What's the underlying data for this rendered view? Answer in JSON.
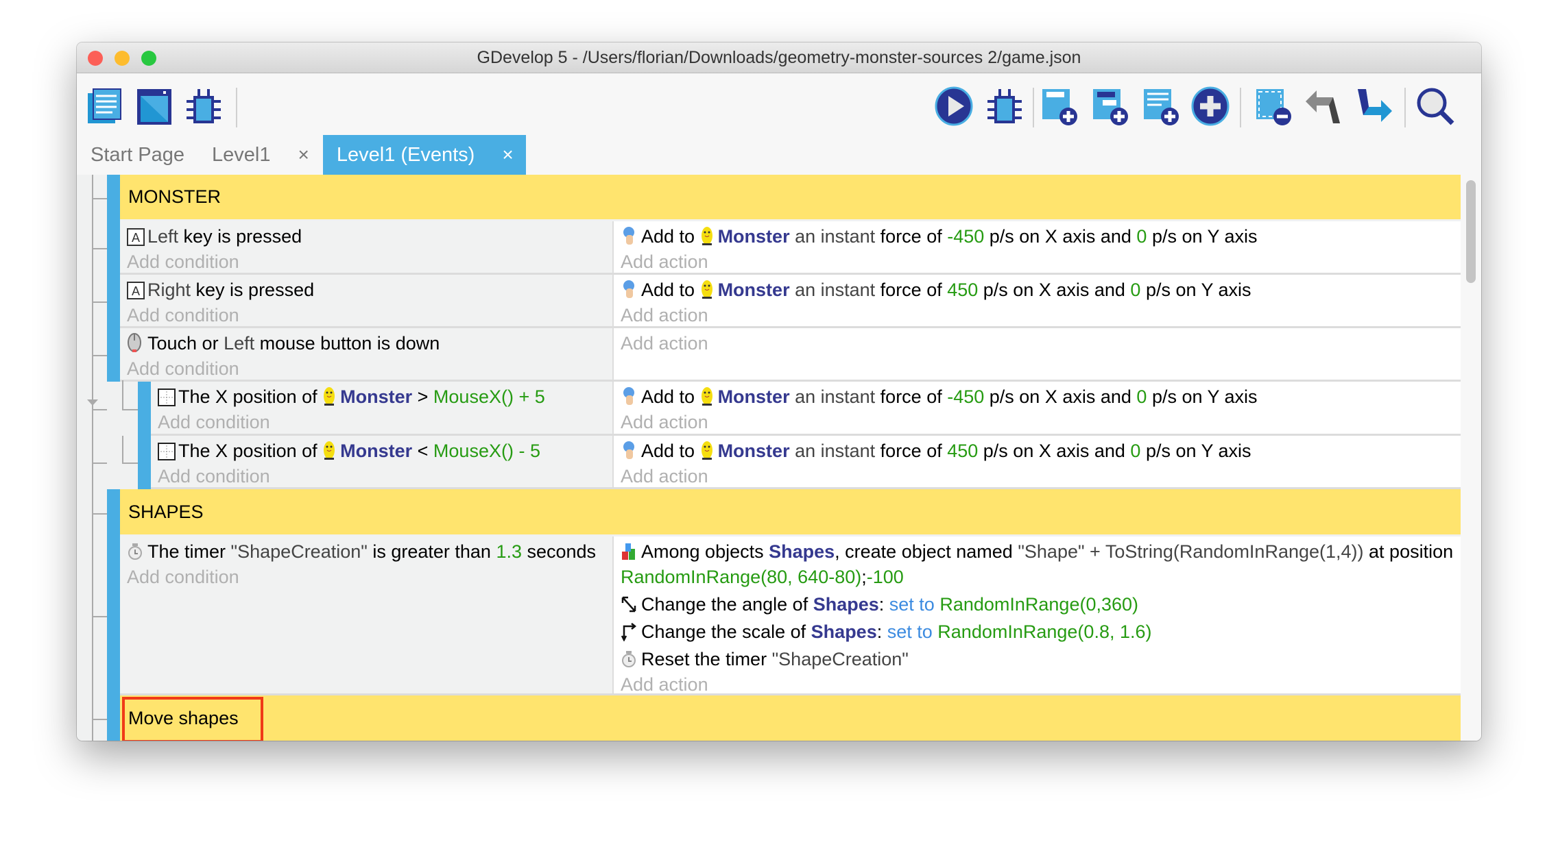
{
  "window": {
    "title": "GDevelop 5 - /Users/florian/Downloads/geometry-monster-sources 2/game.json"
  },
  "colors": {
    "accent": "#49aee3",
    "group": "#ffe46e",
    "object": "#35398f",
    "value": "#269b12",
    "operator": "#3c8be0",
    "highlight": "#f03a17"
  },
  "toolbar": {
    "left": [
      "project-manager-icon",
      "scene-editor-icon",
      "debugger-icon"
    ],
    "right": [
      "preview-play-icon",
      "debugger-icon",
      "add-event-icon",
      "add-subevent-icon",
      "add-comment-icon",
      "add-other-icon",
      "delete-selected-icon",
      "undo-icon",
      "redo-icon",
      "search-icon"
    ]
  },
  "tabs": [
    {
      "label": "Start Page",
      "closable": false
    },
    {
      "label": "Level1",
      "closable": true,
      "close": "×"
    },
    {
      "label": "Level1 (Events)",
      "closable": true,
      "close": "×",
      "active": true
    }
  ],
  "add_condition": "Add condition",
  "add_action": "Add action",
  "events": [
    {
      "type": "group",
      "title": "MONSTER"
    },
    {
      "type": "std",
      "indent": 0,
      "conditions": [
        {
          "icon": "keyboard-icon",
          "segs": [
            [
              "q",
              "Left"
            ],
            [
              "n",
              " key is pressed"
            ]
          ]
        }
      ],
      "actions": [
        {
          "icon": "force-icon",
          "segs": [
            [
              "n",
              "Add to "
            ],
            [
              "m",
              ""
            ],
            [
              "o",
              "Monster"
            ],
            [
              "q",
              " an instant "
            ],
            [
              "n",
              "force of "
            ],
            [
              "g",
              "-450"
            ],
            [
              "n",
              " p/s on X axis and "
            ],
            [
              "g",
              "0"
            ],
            [
              "n",
              " p/s on Y axis"
            ]
          ]
        }
      ]
    },
    {
      "type": "std",
      "indent": 0,
      "conditions": [
        {
          "icon": "keyboard-icon",
          "segs": [
            [
              "q",
              "Right"
            ],
            [
              "n",
              " key is pressed"
            ]
          ]
        }
      ],
      "actions": [
        {
          "icon": "force-icon",
          "segs": [
            [
              "n",
              "Add to "
            ],
            [
              "m",
              ""
            ],
            [
              "o",
              "Monster"
            ],
            [
              "q",
              " an instant "
            ],
            [
              "n",
              "force of "
            ],
            [
              "g",
              "450"
            ],
            [
              "n",
              " p/s on X axis and "
            ],
            [
              "g",
              "0"
            ],
            [
              "n",
              " p/s on Y axis"
            ]
          ]
        }
      ]
    },
    {
      "type": "std",
      "indent": 0,
      "conditions": [
        {
          "icon": "mouse-icon",
          "segs": [
            [
              "n",
              "Touch or "
            ],
            [
              "q",
              "Left"
            ],
            [
              "n",
              " mouse button is down"
            ]
          ]
        }
      ],
      "actions": []
    },
    {
      "type": "std",
      "indent": 1,
      "conditions": [
        {
          "icon": "position-icon",
          "segs": [
            [
              "n",
              "The X position of "
            ],
            [
              "m",
              ""
            ],
            [
              "o",
              "Monster"
            ],
            [
              "n",
              " > "
            ],
            [
              "g",
              "MouseX() + 5"
            ]
          ]
        }
      ],
      "actions": [
        {
          "icon": "force-icon",
          "segs": [
            [
              "n",
              "Add to "
            ],
            [
              "m",
              ""
            ],
            [
              "o",
              "Monster"
            ],
            [
              "q",
              " an instant "
            ],
            [
              "n",
              "force of "
            ],
            [
              "g",
              "-450"
            ],
            [
              "n",
              " p/s on X axis and "
            ],
            [
              "g",
              "0"
            ],
            [
              "n",
              " p/s on Y axis"
            ]
          ]
        }
      ]
    },
    {
      "type": "std",
      "indent": 1,
      "conditions": [
        {
          "icon": "position-icon",
          "segs": [
            [
              "n",
              "The X position of "
            ],
            [
              "m",
              ""
            ],
            [
              "o",
              "Monster"
            ],
            [
              "n",
              " < "
            ],
            [
              "g",
              "MouseX() - 5"
            ]
          ]
        }
      ],
      "actions": [
        {
          "icon": "force-icon",
          "segs": [
            [
              "n",
              "Add to "
            ],
            [
              "m",
              ""
            ],
            [
              "o",
              "Monster"
            ],
            [
              "q",
              " an instant "
            ],
            [
              "n",
              "force of "
            ],
            [
              "g",
              "450"
            ],
            [
              "n",
              " p/s on X axis and "
            ],
            [
              "g",
              "0"
            ],
            [
              "n",
              " p/s on Y axis"
            ]
          ]
        }
      ]
    },
    {
      "type": "group",
      "title": "SHAPES"
    },
    {
      "type": "std",
      "indent": 0,
      "conditions": [
        {
          "icon": "timer-icon",
          "segs": [
            [
              "n",
              "The timer "
            ],
            [
              "q",
              "\"ShapeCreation\""
            ],
            [
              "n",
              " is greater than "
            ],
            [
              "g",
              "1.3"
            ],
            [
              "n",
              " seconds"
            ]
          ]
        }
      ],
      "actions": [
        {
          "icon": "create-object-icon",
          "segs": [
            [
              "n",
              "Among objects "
            ],
            [
              "o",
              "Shapes"
            ],
            [
              "n",
              ", create object named "
            ],
            [
              "q",
              "\"Shape\" + ToString(RandomInRange(1,4))"
            ],
            [
              "n",
              " at position "
            ],
            [
              "g",
              "RandomInRange(80, 640-80)"
            ],
            [
              "n",
              ";"
            ],
            [
              "g",
              "-100"
            ]
          ]
        },
        {
          "icon": "angle-icon",
          "segs": [
            [
              "n",
              "Change the angle of "
            ],
            [
              "o",
              "Shapes"
            ],
            [
              "n",
              ": "
            ],
            [
              "b",
              "set to"
            ],
            [
              "n",
              " "
            ],
            [
              "g",
              "RandomInRange(0,360)"
            ]
          ]
        },
        {
          "icon": "scale-icon",
          "segs": [
            [
              "n",
              "Change the scale of "
            ],
            [
              "o",
              "Shapes"
            ],
            [
              "n",
              ": "
            ],
            [
              "b",
              "set to"
            ],
            [
              "n",
              " "
            ],
            [
              "g",
              "RandomInRange(0.8, 1.6)"
            ]
          ]
        },
        {
          "icon": "timer-icon",
          "segs": [
            [
              "n",
              "Reset the timer "
            ],
            [
              "q",
              "\"ShapeCreation\""
            ]
          ]
        }
      ]
    },
    {
      "type": "group",
      "title": "Move shapes",
      "highlighted": true
    }
  ]
}
